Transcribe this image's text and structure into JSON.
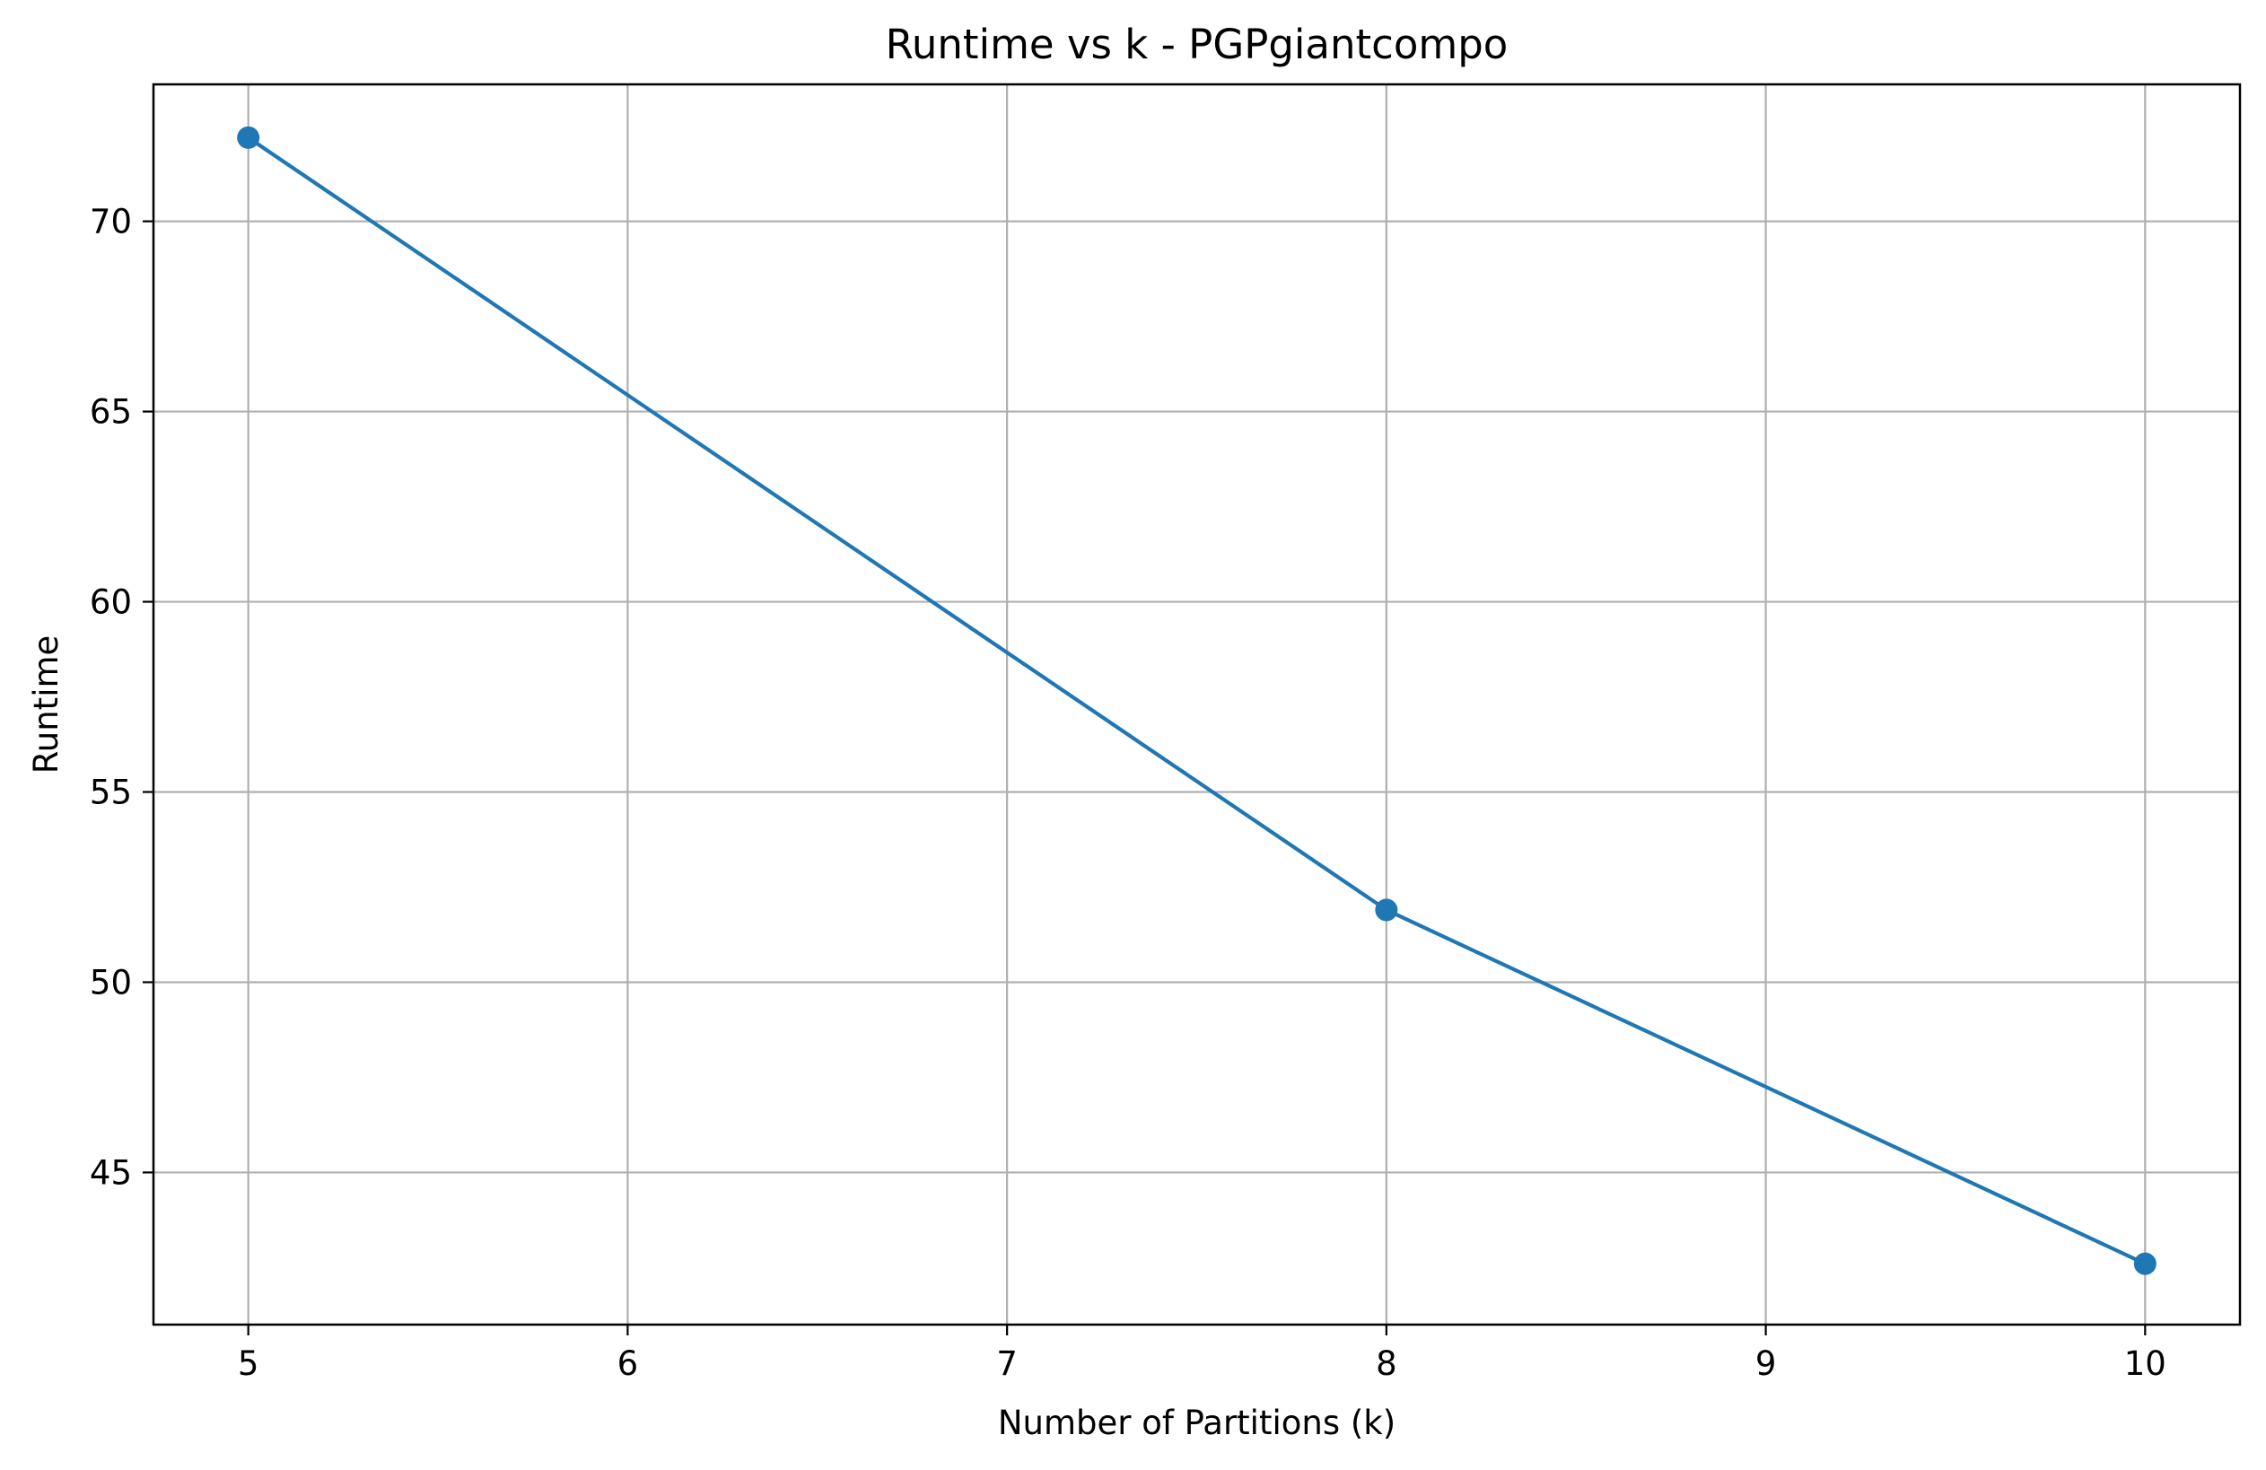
{
  "chart_data": {
    "type": "line",
    "title": "Runtime vs k - PGPgiantcompo",
    "xlabel": "Number of Partitions (k)",
    "ylabel": "Runtime",
    "x": [
      5,
      8,
      10
    ],
    "series": [
      {
        "values": [
          72.2,
          51.9,
          42.6
        ],
        "color": "#1f77b4",
        "marker": "circle"
      }
    ],
    "xlim": [
      4.75,
      10.25
    ],
    "ylim": [
      41.0,
      73.6
    ],
    "xticks": [
      5,
      6,
      7,
      8,
      9,
      10
    ],
    "yticks": [
      45,
      50,
      55,
      60,
      65,
      70
    ],
    "grid": true,
    "grid_color": "#b0b0b0"
  }
}
